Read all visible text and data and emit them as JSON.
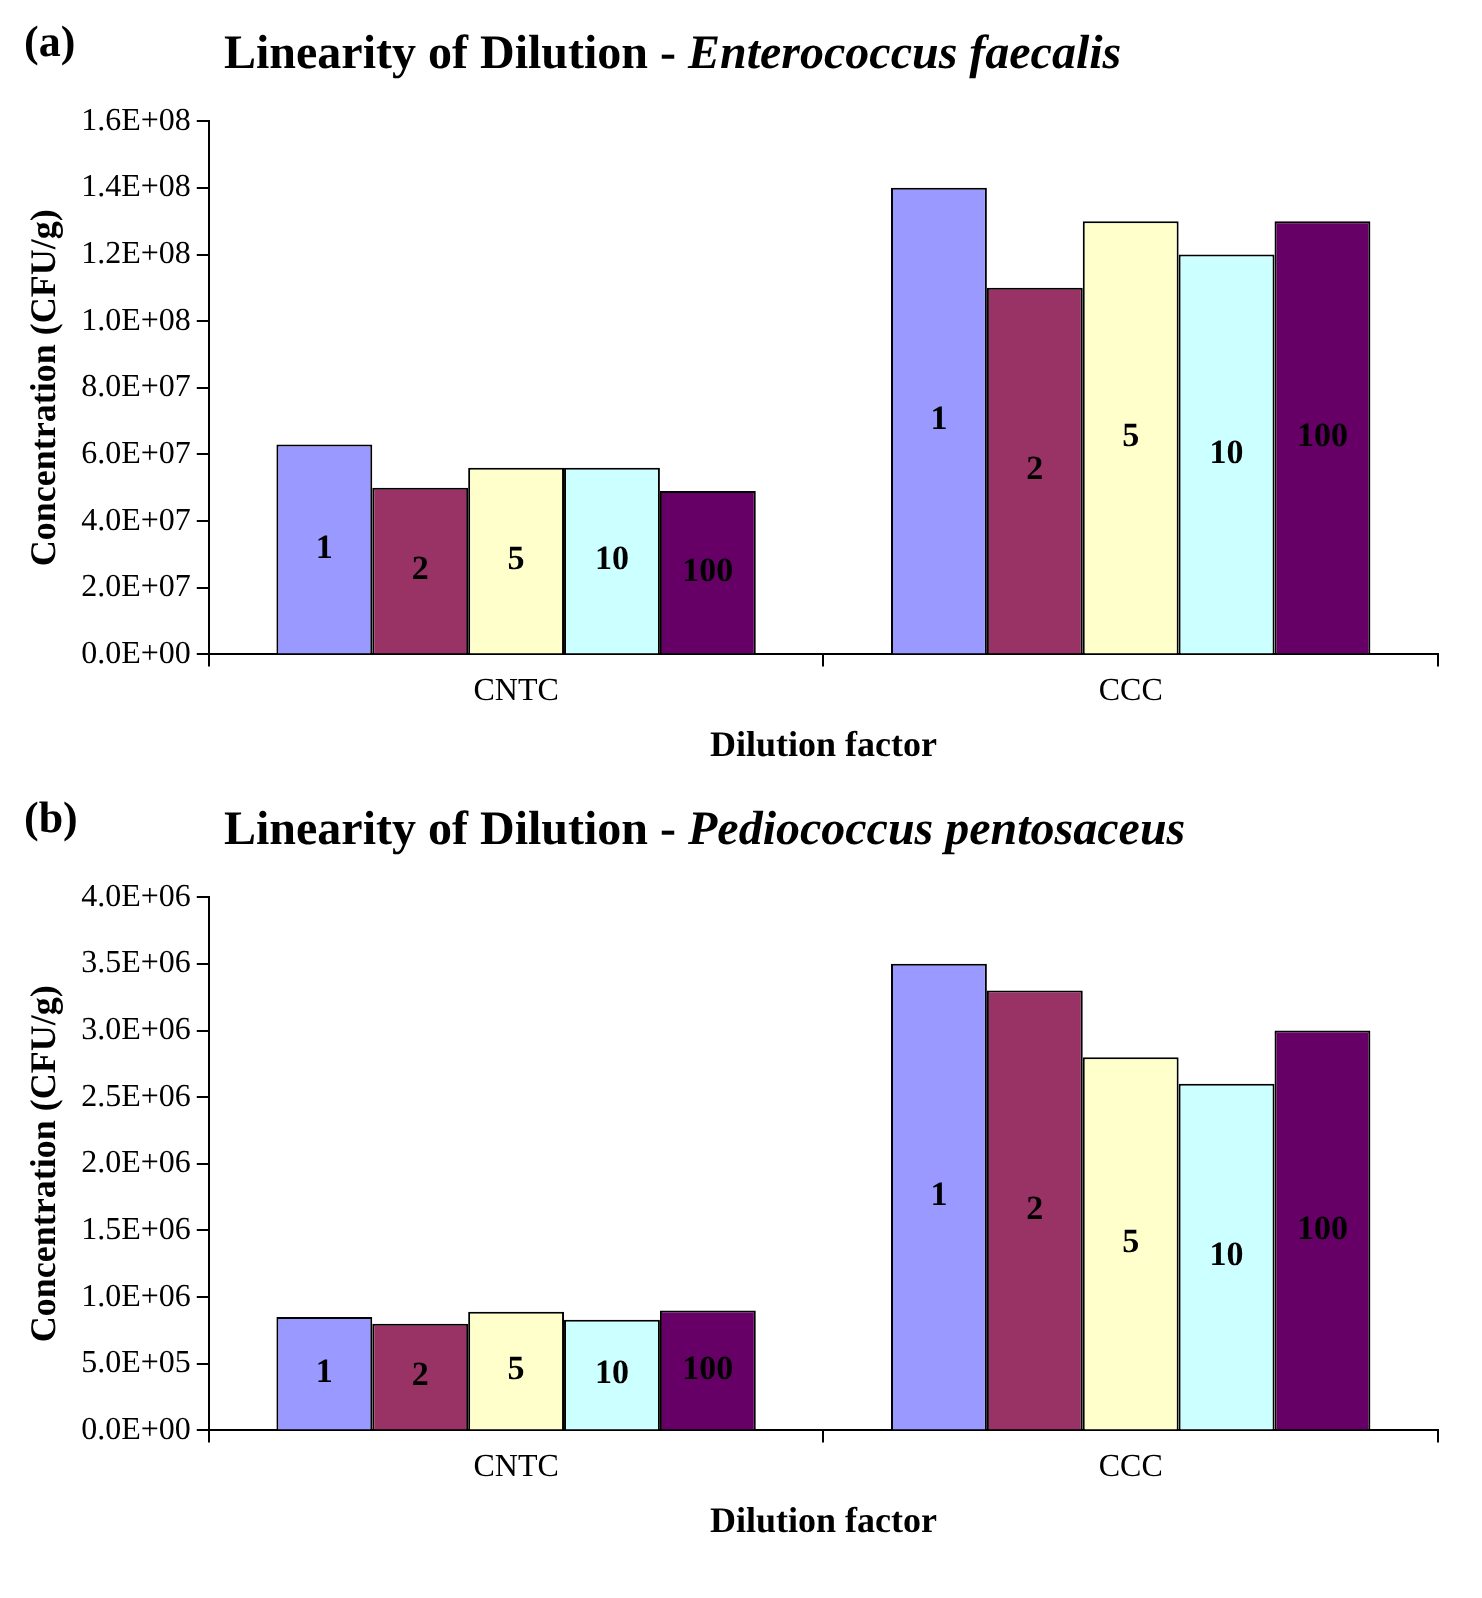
{
  "chart_data": [
    {
      "type": "bar",
      "title": "Linearity of Dilution - Enterococcus faecalis",
      "annotations": [
        "(a)"
      ],
      "xlabel": "Dilution factor",
      "ylabel": "Concentration (CFU/g)",
      "categories": [
        "CNTC",
        "CCC"
      ],
      "series": [
        {
          "name": "1",
          "color": "#9999ff",
          "values": [
            63000000,
            140000000
          ]
        },
        {
          "name": "2",
          "color": "#993366",
          "values": [
            50000000,
            110000000
          ]
        },
        {
          "name": "5",
          "color": "#ffffcc",
          "values": [
            56000000,
            130000000
          ]
        },
        {
          "name": "10",
          "color": "#ccffff",
          "values": [
            56000000,
            120000000
          ]
        },
        {
          "name": "100",
          "color": "#660066",
          "values": [
            49000000,
            130000000
          ]
        }
      ],
      "ylim": [
        0,
        160000000
      ],
      "yticks": [
        {
          "value": 0,
          "label": "0.0E+00"
        },
        {
          "value": 20000000,
          "label": "2.0E+07"
        },
        {
          "value": 40000000,
          "label": "4.0E+07"
        },
        {
          "value": 60000000,
          "label": "6.0E+07"
        },
        {
          "value": 80000000,
          "label": "8.0E+07"
        },
        {
          "value": 100000000,
          "label": "1.0E+08"
        },
        {
          "value": 120000000,
          "label": "1.2E+08"
        },
        {
          "value": 140000000,
          "label": "1.4E+08"
        },
        {
          "value": 160000000,
          "label": "1.6E+08"
        }
      ],
      "grid": false,
      "legend": false
    },
    {
      "type": "bar",
      "title": "Linearity of Dilution - Pediococcus pentosaceus",
      "annotations": [
        "(b)"
      ],
      "xlabel": "Dilution factor",
      "ylabel": "Concentration (CFU/g)",
      "categories": [
        "CNTC",
        "CCC"
      ],
      "series": [
        {
          "name": "1",
          "color": "#9999ff",
          "values": [
            850000,
            3500000
          ]
        },
        {
          "name": "2",
          "color": "#993366",
          "values": [
            800000,
            3300000
          ]
        },
        {
          "name": "5",
          "color": "#ffffcc",
          "values": [
            890000,
            2800000
          ]
        },
        {
          "name": "10",
          "color": "#ccffff",
          "values": [
            830000,
            2600000
          ]
        },
        {
          "name": "100",
          "color": "#660066",
          "values": [
            900000,
            3000000
          ]
        }
      ],
      "ylim": [
        0,
        4000000
      ],
      "yticks": [
        {
          "value": 0,
          "label": "0.0E+00"
        },
        {
          "value": 500000,
          "label": "5.0E+05"
        },
        {
          "value": 1000000,
          "label": "1.0E+06"
        },
        {
          "value": 1500000,
          "label": "1.5E+06"
        },
        {
          "value": 2000000,
          "label": "2.0E+06"
        },
        {
          "value": 2500000,
          "label": "2.5E+06"
        },
        {
          "value": 3000000,
          "label": "3.0E+06"
        },
        {
          "value": 3500000,
          "label": "3.5E+06"
        },
        {
          "value": 4000000,
          "label": "4.0E+06"
        }
      ],
      "grid": false,
      "legend": false
    }
  ]
}
